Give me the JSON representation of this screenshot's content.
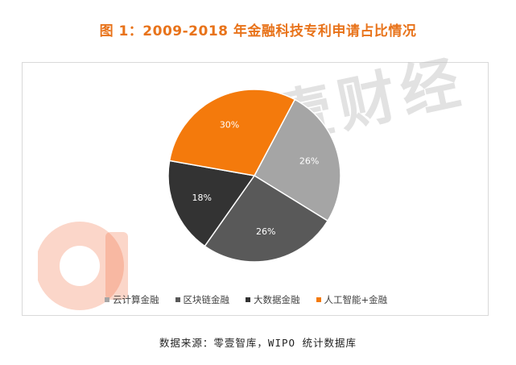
{
  "header": {
    "title": "图 1：2009-2018 年金融科技专利申请占比情况"
  },
  "watermark": {
    "text": "壹财经",
    "logo_color": "#f26a3c"
  },
  "chart_data": {
    "type": "pie",
    "title": "图 1：2009-2018 年金融科技专利申请占比情况",
    "categories": [
      "云计算金融",
      "区块链金融",
      "大数据金融",
      "人工智能+金融"
    ],
    "values": [
      26,
      26,
      18,
      30
    ],
    "data_labels": [
      "26%",
      "26%",
      "18%",
      "30%"
    ],
    "colors": [
      "#a5a5a5",
      "#595959",
      "#333333",
      "#f47a0c"
    ],
    "legend_position": "bottom"
  },
  "footer": {
    "source": "数据来源：零壹智库，WIPO 统计数据库"
  }
}
